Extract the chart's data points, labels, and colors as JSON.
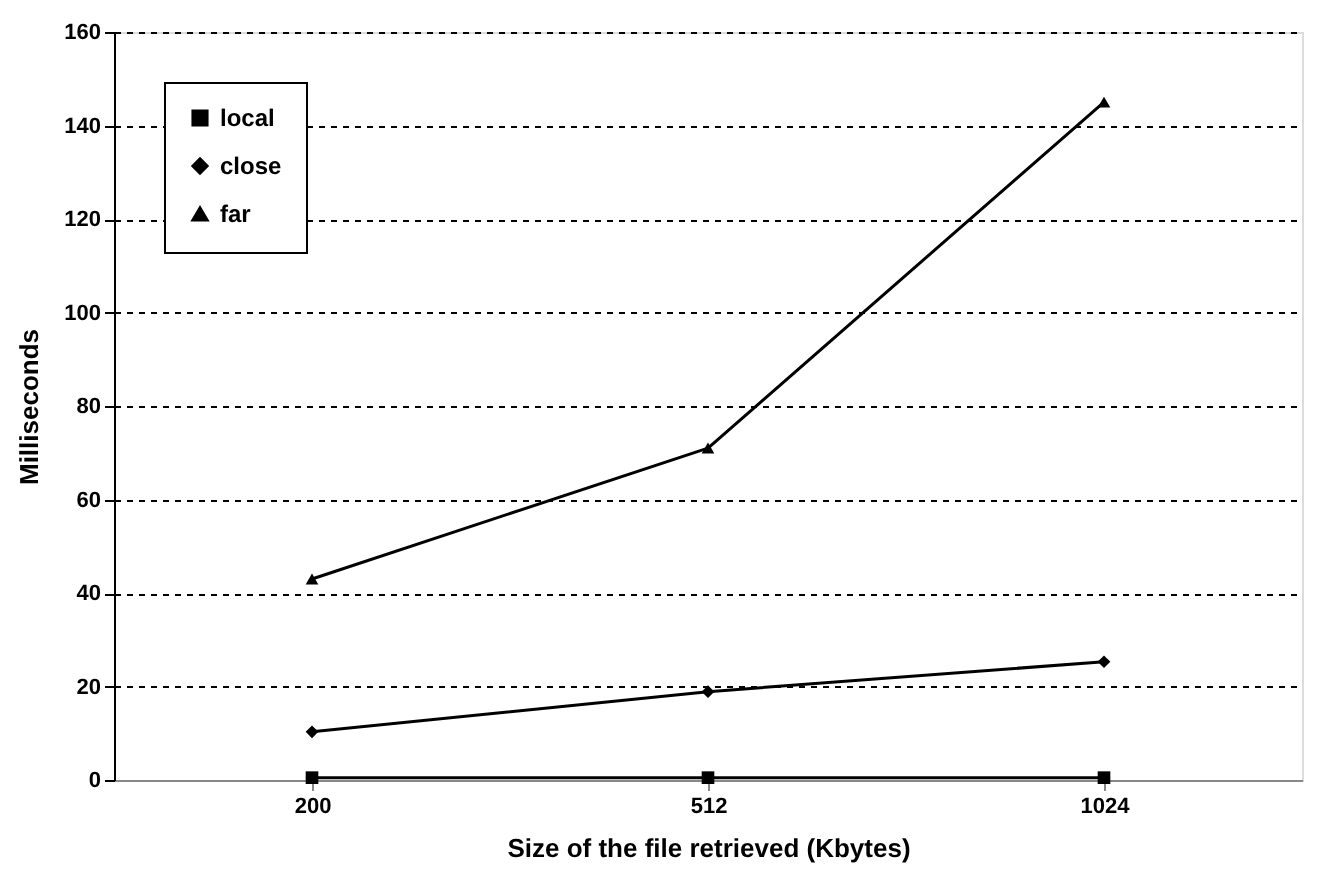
{
  "chart_data": {
    "type": "line",
    "xlabel": "Size of the file retrieved (Kbytes)",
    "ylabel": "Milliseconds",
    "categories": [
      "200",
      "512",
      "1024"
    ],
    "series": [
      {
        "name": "local",
        "color": "#000000",
        "marker": "square",
        "values": [
          0.5,
          0.5,
          0.5
        ]
      },
      {
        "name": "close",
        "color": "#000000",
        "marker": "diamond",
        "values": [
          10.3,
          18.9,
          25.3
        ]
      },
      {
        "name": "far",
        "color": "#000000",
        "marker": "triangle",
        "values": [
          43,
          71,
          145
        ]
      }
    ],
    "ylim": [
      0,
      160
    ],
    "yticks": [
      0,
      20,
      40,
      60,
      80,
      100,
      120,
      140,
      160
    ],
    "grid": "y",
    "legend": "top left",
    "line_style": "solid"
  }
}
